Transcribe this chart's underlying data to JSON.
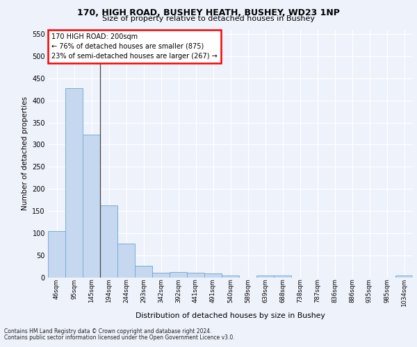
{
  "title1": "170, HIGH ROAD, BUSHEY HEATH, BUSHEY, WD23 1NP",
  "title2": "Size of property relative to detached houses in Bushey",
  "xlabel": "Distribution of detached houses by size in Bushey",
  "ylabel": "Number of detached properties",
  "footnote1": "Contains HM Land Registry data © Crown copyright and database right 2024.",
  "footnote2": "Contains public sector information licensed under the Open Government Licence v3.0.",
  "annotation_line1": "170 HIGH ROAD: 200sqm",
  "annotation_line2": "← 76% of detached houses are smaller (875)",
  "annotation_line3": "23% of semi-detached houses are larger (267) →",
  "bar_labels": [
    "46sqm",
    "95sqm",
    "145sqm",
    "194sqm",
    "244sqm",
    "293sqm",
    "342sqm",
    "392sqm",
    "441sqm",
    "491sqm",
    "540sqm",
    "589sqm",
    "639sqm",
    "688sqm",
    "738sqm",
    "787sqm",
    "836sqm",
    "886sqm",
    "935sqm",
    "985sqm",
    "1034sqm"
  ],
  "bar_values": [
    105,
    428,
    322,
    163,
    76,
    27,
    11,
    13,
    11,
    9,
    4,
    0,
    4,
    4,
    0,
    0,
    0,
    0,
    0,
    0,
    5
  ],
  "bar_color": "#c5d8f0",
  "bar_edge_color": "#7aadd4",
  "ylim": [
    0,
    560
  ],
  "yticks": [
    0,
    50,
    100,
    150,
    200,
    250,
    300,
    350,
    400,
    450,
    500,
    550
  ],
  "bg_color": "#eef2fb",
  "grid_color": "#ffffff",
  "vline_index": 3
}
